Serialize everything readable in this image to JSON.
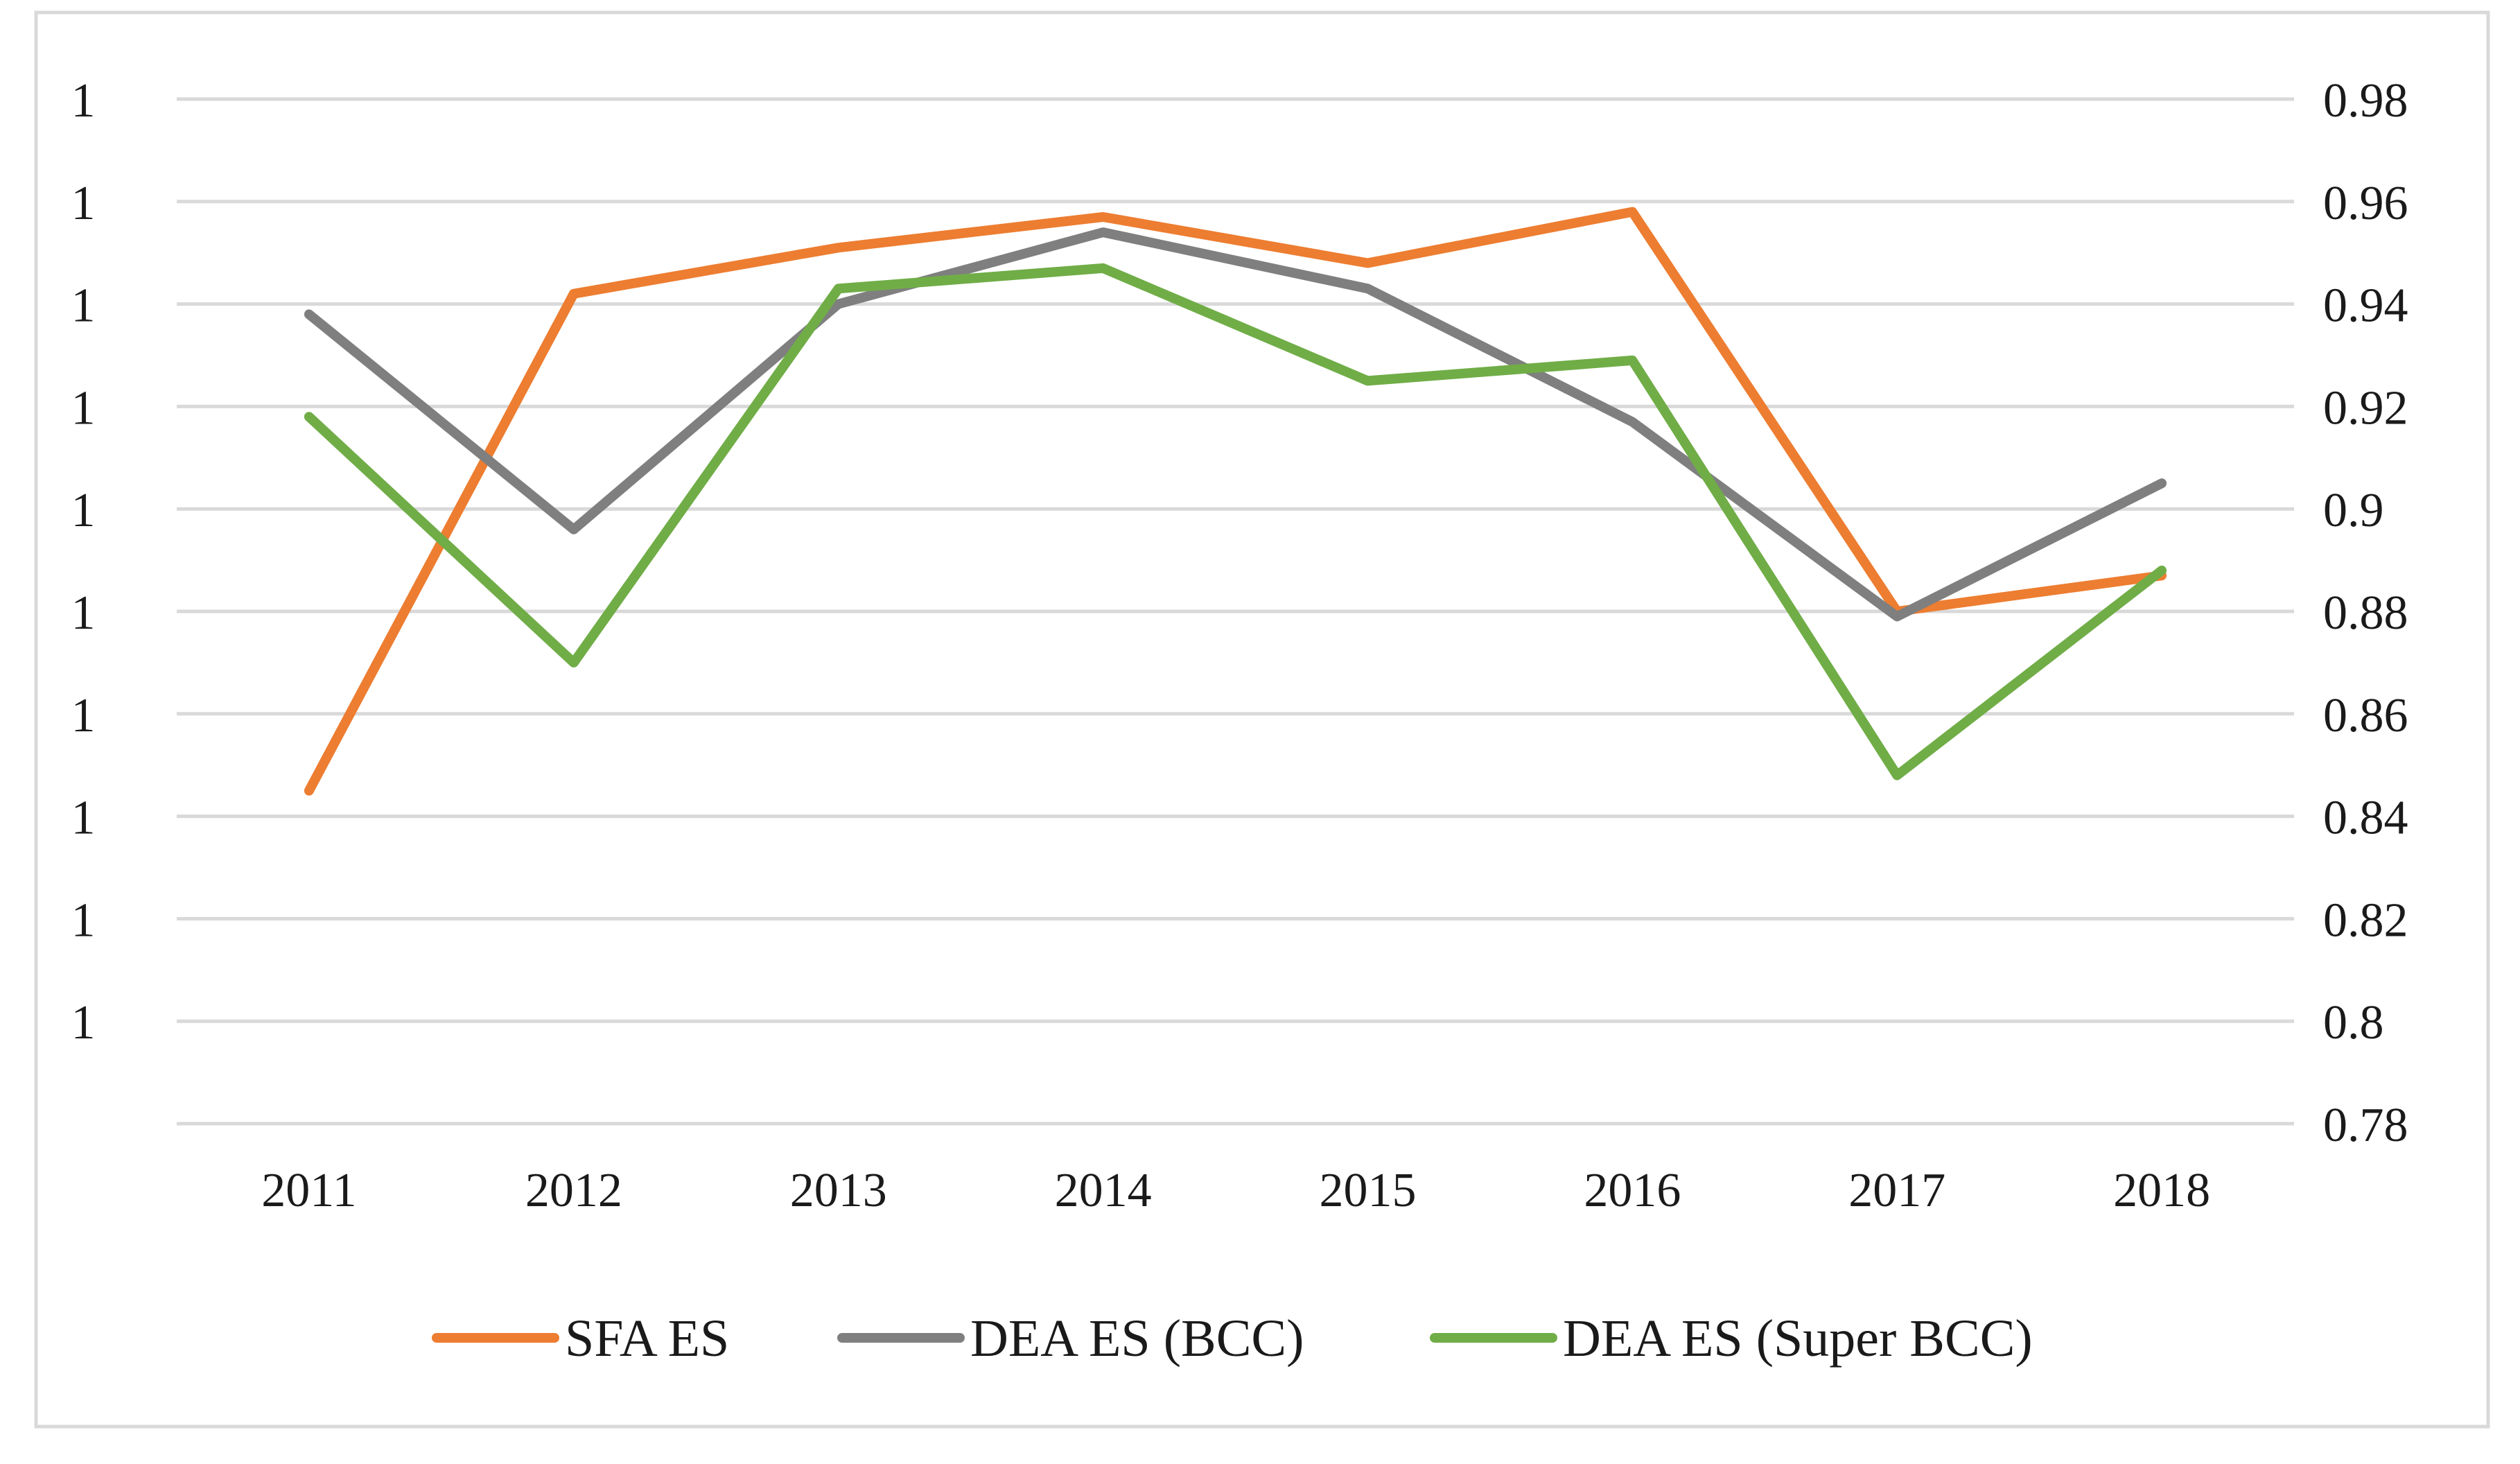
{
  "chart_data": {
    "type": "line",
    "title": "",
    "xlabel": "",
    "ylabel": "",
    "categories": [
      "2011",
      "2012",
      "2013",
      "2014",
      "2015",
      "2016",
      "2017",
      "2018"
    ],
    "left_axis": {
      "tick_labels": [
        "1",
        "1",
        "1",
        "1",
        "1",
        "1",
        "1",
        "1",
        "1",
        "1"
      ]
    },
    "right_axis": {
      "ylim": [
        0.78,
        0.98
      ],
      "tick_values": [
        0.78,
        0.8,
        0.82,
        0.84,
        0.86,
        0.88,
        0.9,
        0.92,
        0.94,
        0.96,
        0.98
      ],
      "tick_labels": [
        "0.78",
        "0.8",
        "0.82",
        "0.84",
        "0.86",
        "0.88",
        "0.9",
        "0.92",
        "0.94",
        "0.96",
        "0.98"
      ]
    },
    "gridlines": true,
    "legend_position": "bottom",
    "series": [
      {
        "name": "SFA ES",
        "color": "#ED7D31",
        "values": [
          0.845,
          0.942,
          0.951,
          0.957,
          0.948,
          0.958,
          0.88,
          0.887
        ]
      },
      {
        "name": "DEA ES (BCC)",
        "color": "#7F7F7F",
        "values": [
          0.938,
          0.896,
          0.94,
          0.954,
          0.943,
          0.917,
          0.879,
          0.905
        ]
      },
      {
        "name": "DEA ES (Super BCC)",
        "color": "#70AD47",
        "values": [
          0.918,
          0.87,
          0.943,
          0.947,
          0.925,
          0.929,
          0.848,
          0.888
        ]
      }
    ]
  }
}
